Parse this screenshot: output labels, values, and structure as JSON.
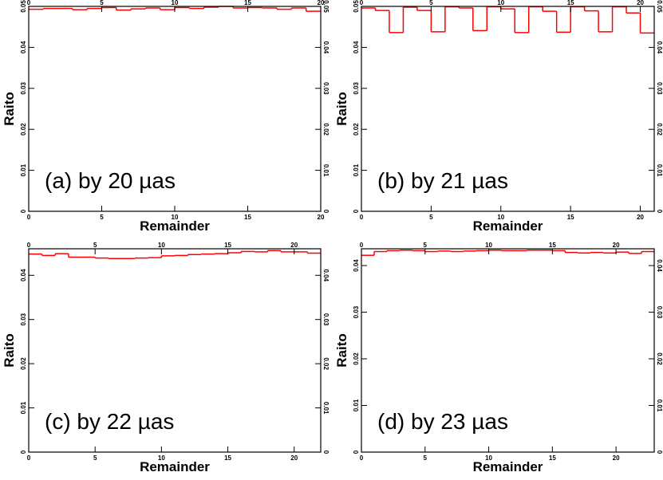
{
  "chart_data": [
    {
      "type": "histogram",
      "xlabel": "Remainder",
      "ylabel": "Raito",
      "annotation": "(a) by 20 µas",
      "color": "#ff0000",
      "bins": [
        0,
        1,
        2,
        3,
        4,
        5,
        6,
        7,
        8,
        9,
        10,
        11,
        12,
        13,
        14,
        15,
        16,
        17,
        18,
        19,
        20
      ],
      "values": [
        0.0493,
        0.0495,
        0.0495,
        0.0492,
        0.0495,
        0.0497,
        0.0491,
        0.0494,
        0.0496,
        0.0492,
        0.0497,
        0.0495,
        0.0498,
        0.05,
        0.0496,
        0.0497,
        0.0496,
        0.0493,
        0.0496,
        0.0488
      ],
      "xlim": [
        0,
        20
      ],
      "xticks": [
        0,
        5,
        10,
        15,
        20
      ],
      "ylim": [
        0,
        0.05
      ],
      "yticks": [
        0,
        0.01,
        0.02,
        0.03,
        0.04,
        0.05
      ]
    },
    {
      "type": "histogram",
      "xlabel": "Remainder",
      "ylabel": "Raito",
      "annotation": "(b) by 21 µas",
      "color": "#ff0000",
      "bins": [
        0,
        1,
        2,
        3,
        4,
        5,
        6,
        7,
        8,
        9,
        10,
        11,
        12,
        13,
        14,
        15,
        16,
        17,
        18,
        19,
        20,
        21
      ],
      "values": [
        0.0496,
        0.049,
        0.0436,
        0.0498,
        0.049,
        0.0438,
        0.0499,
        0.0496,
        0.0441,
        0.0499,
        0.0494,
        0.0436,
        0.0499,
        0.0488,
        0.0437,
        0.0499,
        0.0489,
        0.0438,
        0.0499,
        0.0484,
        0.0435
      ],
      "xlim": [
        0,
        21
      ],
      "xticks": [
        0,
        5,
        10,
        15,
        20
      ],
      "ylim": [
        0,
        0.05
      ],
      "yticks": [
        0,
        0.01,
        0.02,
        0.03,
        0.04,
        0.05
      ]
    },
    {
      "type": "histogram",
      "xlabel": "Remainder",
      "ylabel": "Raito",
      "annotation": "(c) by 22 µas",
      "color": "#ff0000",
      "bins": [
        0,
        1,
        2,
        3,
        4,
        5,
        6,
        7,
        8,
        9,
        10,
        11,
        12,
        13,
        14,
        15,
        16,
        17,
        18,
        19,
        20,
        21,
        22
      ],
      "values": [
        0.0448,
        0.0445,
        0.0449,
        0.0441,
        0.0441,
        0.0439,
        0.0438,
        0.0438,
        0.0439,
        0.044,
        0.0444,
        0.0445,
        0.0447,
        0.0448,
        0.0449,
        0.0451,
        0.0454,
        0.0453,
        0.0456,
        0.0453,
        0.0453,
        0.045
      ],
      "xlim": [
        0,
        22
      ],
      "xticks": [
        0,
        5,
        10,
        15,
        20
      ],
      "ylim": [
        0,
        0.046
      ],
      "yticks": [
        0,
        0.01,
        0.02,
        0.03,
        0.04
      ]
    },
    {
      "type": "histogram",
      "xlabel": "Remainder",
      "ylabel": "Raito",
      "annotation": "(d) by 23 µas",
      "color": "#ff0000",
      "bins": [
        0,
        1,
        2,
        3,
        4,
        5,
        6,
        7,
        8,
        9,
        10,
        11,
        12,
        13,
        14,
        15,
        16,
        17,
        18,
        19,
        20,
        21,
        22,
        23
      ],
      "values": [
        0.0422,
        0.043,
        0.0432,
        0.0433,
        0.0432,
        0.043,
        0.0431,
        0.043,
        0.0431,
        0.0432,
        0.0433,
        0.0432,
        0.0432,
        0.0433,
        0.0433,
        0.0432,
        0.0428,
        0.0427,
        0.0428,
        0.0427,
        0.0429,
        0.0426,
        0.043
      ],
      "xlim": [
        0,
        23
      ],
      "xticks": [
        0,
        5,
        10,
        15,
        20
      ],
      "ylim": [
        0,
        0.0436
      ],
      "yticks": [
        0,
        0.01,
        0.02,
        0.03,
        0.04
      ]
    }
  ]
}
